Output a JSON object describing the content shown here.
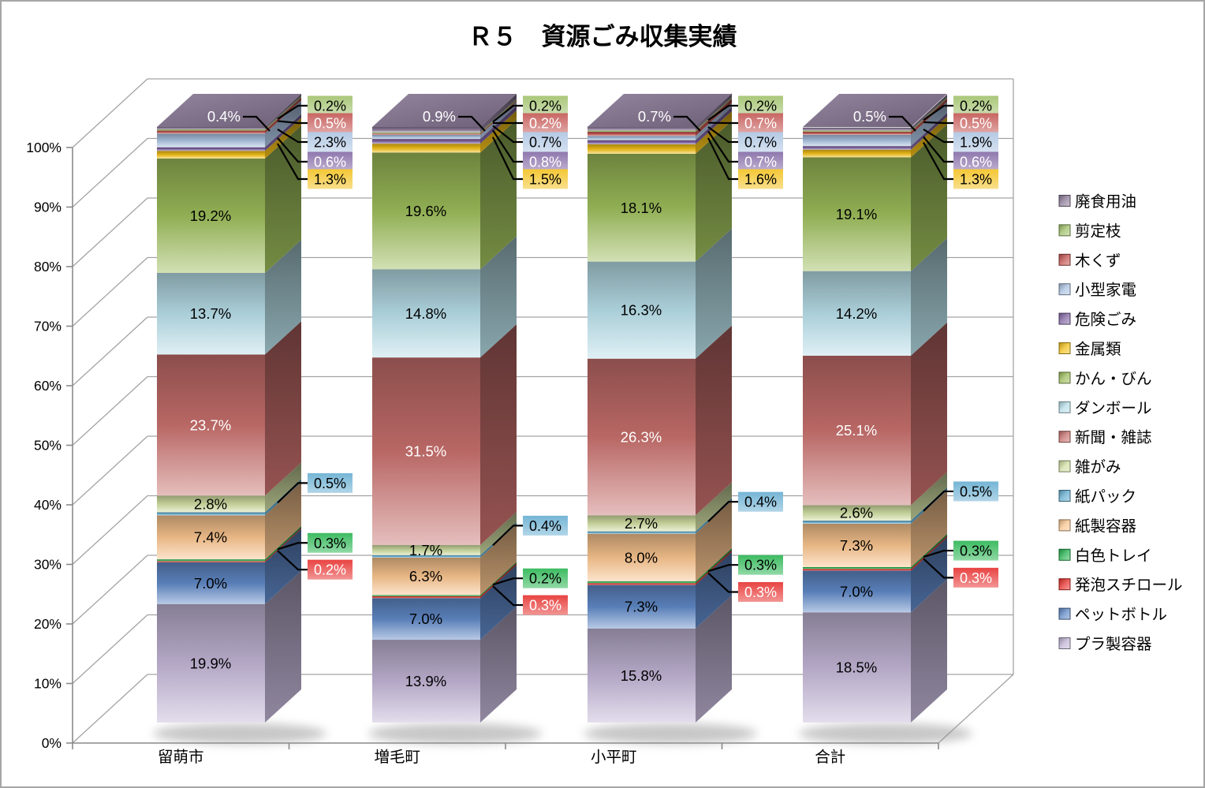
{
  "chart_data": {
    "type": "bar",
    "subtype": "3d-100-percent-stacked-column",
    "title": "Ｒ５　資源ごみ収集実績",
    "categories": [
      "留萌市",
      "増毛町",
      "小平町",
      "合計"
    ],
    "y_axis": {
      "min": 0,
      "max": 100,
      "tick_step": 10,
      "ticks": [
        "0%",
        "10%",
        "20%",
        "30%",
        "40%",
        "50%",
        "60%",
        "70%",
        "80%",
        "90%",
        "100%"
      ]
    },
    "grid": true,
    "legend_position": "right",
    "legend_order": "top-of-stack-first",
    "value_suffix": "%",
    "series": [
      {
        "name": "廃食用油",
        "color": "#8b7a97",
        "values": [
          0.4,
          0.9,
          0.7,
          0.5
        ],
        "label_placement": "cap",
        "label_color": "white"
      },
      {
        "name": "剪定枝",
        "color": "#9dbf67",
        "values": [
          0.2,
          0.2,
          0.2,
          0.2
        ],
        "label_placement": "callout-top",
        "label_color": "black"
      },
      {
        "name": "木くず",
        "color": "#c0504d",
        "values": [
          0.5,
          0.2,
          0.7,
          0.5
        ],
        "label_placement": "callout-top",
        "label_color": "white"
      },
      {
        "name": "小型家電",
        "color": "#aac2e0",
        "values": [
          2.3,
          0.7,
          0.7,
          1.9
        ],
        "label_placement": "callout-top",
        "label_color": "black"
      },
      {
        "name": "危険ごみ",
        "color": "#8064a2",
        "values": [
          0.6,
          0.8,
          0.7,
          0.6
        ],
        "label_placement": "callout-top",
        "label_color": "white"
      },
      {
        "name": "金属類",
        "color": "#f2bf18",
        "values": [
          1.3,
          1.5,
          1.6,
          1.3
        ],
        "label_placement": "callout-top",
        "label_color": "black"
      },
      {
        "name": "かん・びん",
        "color": "#9bbb59",
        "values": [
          19.2,
          19.6,
          18.1,
          19.1
        ],
        "label_placement": "inside",
        "label_color": "black"
      },
      {
        "name": "ダンボール",
        "color": "#b7dee8",
        "values": [
          13.7,
          14.8,
          16.3,
          14.2
        ],
        "label_placement": "inside",
        "label_color": "black"
      },
      {
        "name": "新聞・雑誌",
        "color": "#c66f6c",
        "values": [
          23.7,
          31.5,
          26.3,
          25.1
        ],
        "label_placement": "inside",
        "label_color": "white"
      },
      {
        "name": "雑がみ",
        "color": "#d0dda2",
        "values": [
          2.8,
          1.7,
          2.7,
          2.6
        ],
        "label_placement": "inside",
        "label_color": "black"
      },
      {
        "name": "紙パック",
        "color": "#62abcf",
        "values": [
          0.5,
          0.4,
          0.4,
          0.5
        ],
        "label_placement": "callout-mid",
        "label_color": "black"
      },
      {
        "name": "紙製容器",
        "color": "#f8c48e",
        "values": [
          7.4,
          6.3,
          8.0,
          7.3
        ],
        "label_placement": "inside",
        "label_color": "black"
      },
      {
        "name": "白色トレイ",
        "color": "#22b24c",
        "values": [
          0.3,
          0.2,
          0.3,
          0.3
        ],
        "label_placement": "callout-mid",
        "label_color": "black"
      },
      {
        "name": "発泡スチロール",
        "color": "#e52b28",
        "values": [
          0.2,
          0.3,
          0.3,
          0.3
        ],
        "label_placement": "callout-mid",
        "label_color": "white"
      },
      {
        "name": "ペットボトル",
        "color": "#5f87c5",
        "values": [
          7.0,
          7.0,
          7.3,
          7.0
        ],
        "label_placement": "inside",
        "label_color": "black"
      },
      {
        "name": "プラ製容器",
        "color": "#c0b4d4",
        "values": [
          19.9,
          13.9,
          15.8,
          18.5
        ],
        "label_placement": "inside",
        "label_color": "black"
      }
    ]
  }
}
